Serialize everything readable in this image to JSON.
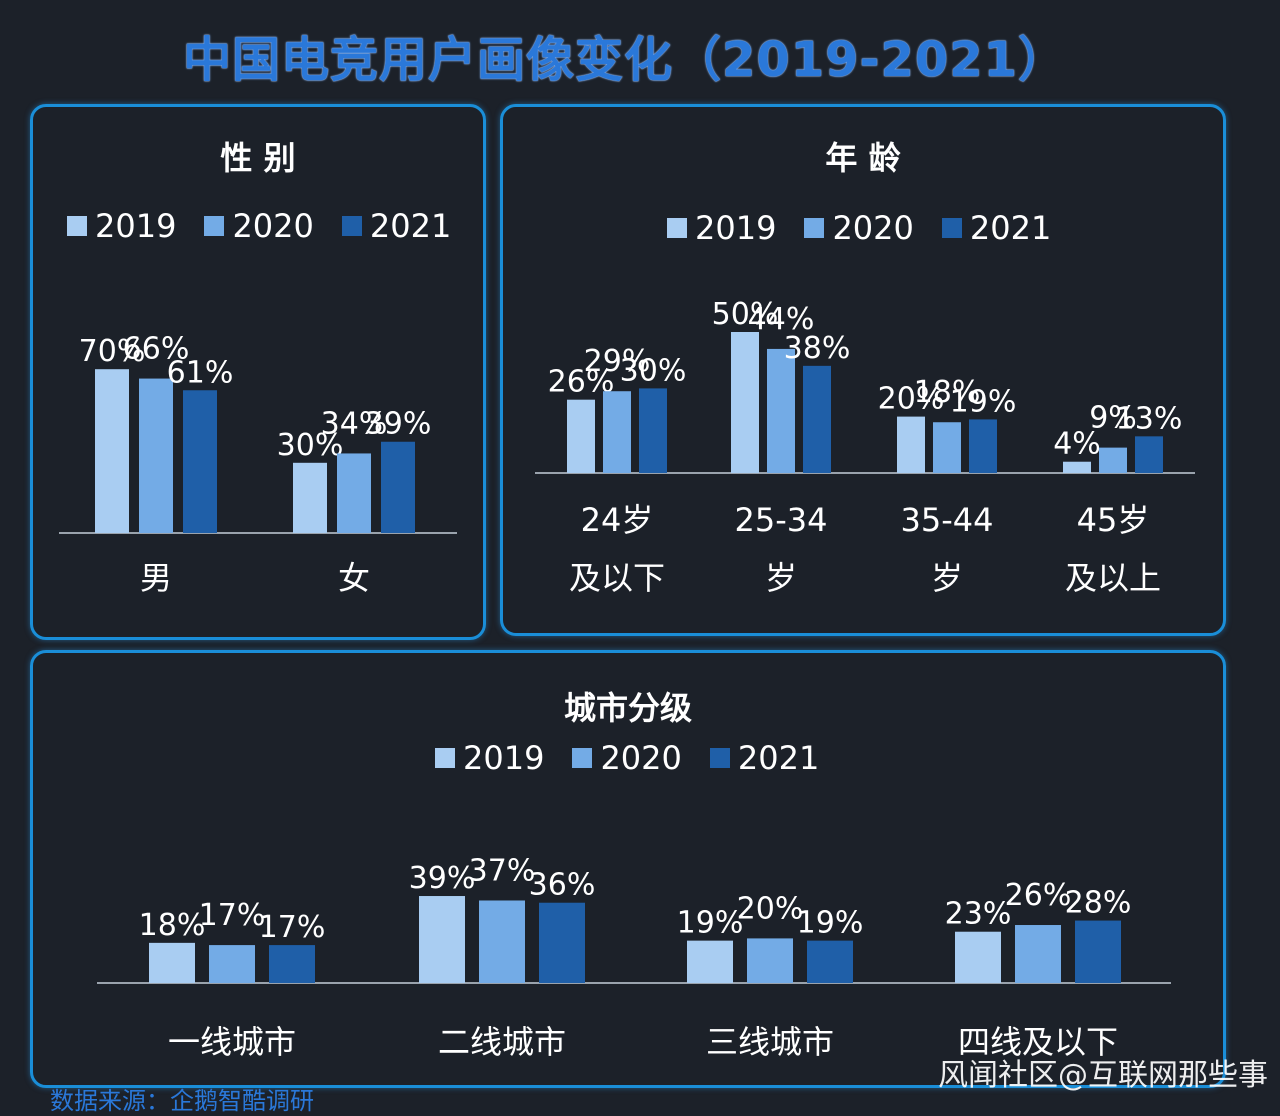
{
  "title": "中国电竞用户画像变化（2019-2021）",
  "colors": {
    "2019": "#a9cdf2",
    "2020": "#73abe6",
    "2021": "#1f5fa8",
    "axis": "#9aa3ad",
    "text": "#ffffff"
  },
  "legend": [
    "2019",
    "2020",
    "2021"
  ],
  "watermark": "风闻社区@互联网那些事",
  "footer": "数据来源：企鹅智酷调研",
  "chart_data": [
    {
      "id": "gender",
      "type": "bar",
      "title": "性  别",
      "categories": [
        "男",
        "女"
      ],
      "series": [
        {
          "name": "2019",
          "values": [
            70,
            30
          ]
        },
        {
          "name": "2020",
          "values": [
            66,
            34
          ]
        },
        {
          "name": "2021",
          "values": [
            61,
            39
          ]
        }
      ],
      "ylim": [
        0,
        100
      ]
    },
    {
      "id": "age",
      "type": "bar",
      "title": "年  龄",
      "categories": [
        [
          "24岁",
          "及以下"
        ],
        [
          "25-34",
          "岁"
        ],
        [
          "35-44",
          "岁"
        ],
        [
          "45岁",
          "及以上"
        ]
      ],
      "series": [
        {
          "name": "2019",
          "values": [
            26,
            50,
            20,
            4
          ]
        },
        {
          "name": "2020",
          "values": [
            29,
            44,
            18,
            9
          ]
        },
        {
          "name": "2021",
          "values": [
            30,
            38,
            19,
            13
          ]
        }
      ],
      "ylim": [
        0,
        100
      ]
    },
    {
      "id": "city",
      "type": "bar",
      "title": "城市分级",
      "categories": [
        "一线城市",
        "二线城市",
        "三线城市",
        "四线及以下"
      ],
      "series": [
        {
          "name": "2019",
          "values": [
            18,
            39,
            19,
            23
          ]
        },
        {
          "name": "2020",
          "values": [
            17,
            37,
            20,
            26
          ]
        },
        {
          "name": "2021",
          "values": [
            17,
            36,
            19,
            28
          ]
        }
      ],
      "ylim": [
        0,
        100
      ]
    }
  ]
}
